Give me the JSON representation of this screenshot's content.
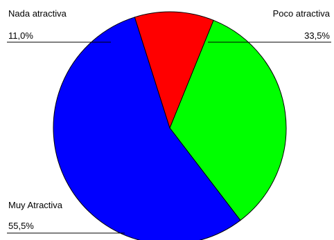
{
  "chart_data": {
    "type": "pie",
    "slices": [
      {
        "label": "Poco atractiva",
        "value": 33.5,
        "value_text": "33,5%",
        "color": "#00ff00"
      },
      {
        "label": "Muy Atractiva",
        "value": 55.5,
        "value_text": "55,5%",
        "color": "#0000ff"
      },
      {
        "label": "Nada atractiva",
        "value": 11.0,
        "value_text": "11,0%",
        "color": "#ff0000"
      }
    ],
    "legend": "none",
    "direction": "clockwise",
    "start": "top"
  }
}
